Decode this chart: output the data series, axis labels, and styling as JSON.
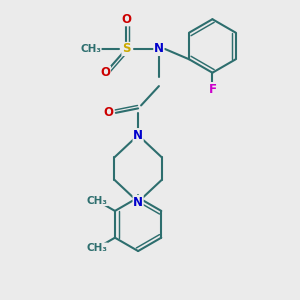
{
  "bg_color": "#ebebeb",
  "bond_color": "#2d6e6e",
  "bond_width": 1.5,
  "atom_colors": {
    "N": "#0000cc",
    "O": "#cc0000",
    "S": "#ccaa00",
    "F": "#cc00cc",
    "C": "#2d6e6e"
  },
  "font_size": 8.5,
  "fig_size": [
    3.0,
    3.0
  ],
  "dpi": 100,
  "xlim": [
    0,
    10
  ],
  "ylim": [
    0,
    10
  ]
}
